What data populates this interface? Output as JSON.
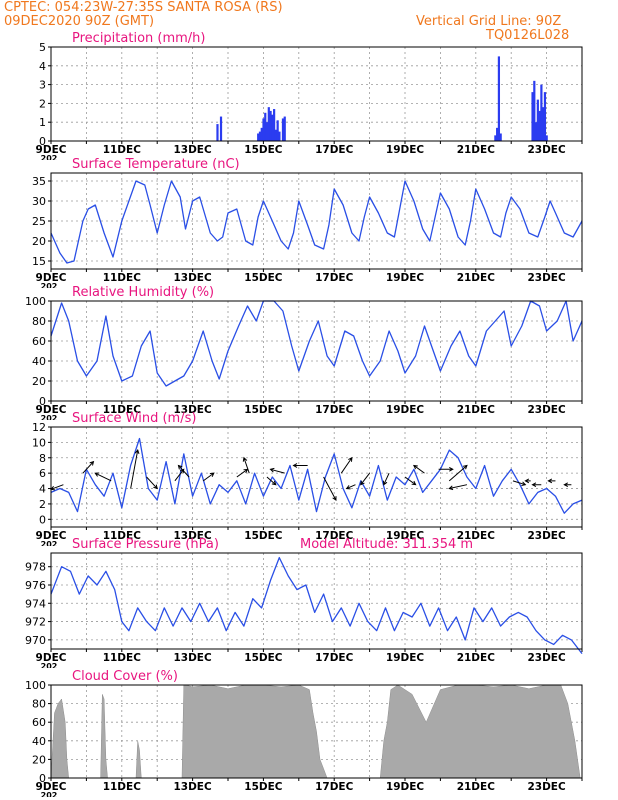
{
  "header": {
    "line1": "CPTEC:   054:23W-27:35S   SANTA ROSA (RS)",
    "line2": "09DEC2020 90Z (GMT)",
    "grid_note": "Vertical Grid Line: 90Z",
    "model_id": "TQ0126L028"
  },
  "colors": {
    "header": "#f0781e",
    "title": "#e8157f",
    "series": "#2a4fe6",
    "bars": "#2b3cf0",
    "cloud": "#a9a9a9",
    "wind_arrow": "#000000"
  },
  "date_ticks": [
    "9DEC",
    "11DEC",
    "13DEC",
    "15DEC",
    "17DEC",
    "19DEC",
    "21DEC",
    "23DEC"
  ],
  "year_stub": "202",
  "chart_data": [
    {
      "id": "precip",
      "type": "bar",
      "title": "Precipitation (mm/h)",
      "ylim": [
        0,
        5
      ],
      "yticks": [
        "0",
        "1",
        "2",
        "3",
        "4",
        "5"
      ],
      "grid": true,
      "x": [
        4.7,
        4.8,
        5.85,
        5.9,
        5.95,
        6.0,
        6.05,
        6.1,
        6.15,
        6.2,
        6.25,
        6.3,
        6.35,
        6.4,
        6.45,
        6.55,
        6.6,
        12.55,
        12.6,
        12.65,
        12.7,
        13.6,
        13.65,
        13.7,
        13.75,
        13.8,
        13.85,
        13.9,
        13.95,
        14.0
      ],
      "values": [
        0.9,
        1.3,
        0.4,
        0.5,
        0.7,
        1.2,
        1.5,
        1.0,
        1.8,
        1.6,
        1.4,
        1.7,
        0.6,
        1.1,
        0.5,
        1.2,
        1.3,
        0.3,
        0.7,
        4.5,
        0.4,
        2.6,
        3.2,
        1.0,
        2.2,
        1.6,
        3.0,
        1.8,
        2.6,
        0.3
      ]
    },
    {
      "id": "temperature",
      "type": "line",
      "title": "Surface Temperature (nC)",
      "ylim": [
        13,
        37
      ],
      "yticks": [
        "15",
        "20",
        "25",
        "30",
        "35"
      ],
      "grid": true,
      "x": [
        0,
        0.25,
        0.45,
        0.65,
        0.9,
        1.05,
        1.25,
        1.5,
        1.75,
        2.0,
        2.2,
        2.4,
        2.65,
        2.8,
        3.0,
        3.2,
        3.4,
        3.65,
        3.8,
        4.0,
        4.2,
        4.5,
        4.7,
        4.85,
        5.0,
        5.25,
        5.5,
        5.7,
        5.85,
        6.0,
        6.25,
        6.5,
        6.7,
        6.85,
        7.0,
        7.25,
        7.45,
        7.7,
        7.85,
        8.0,
        8.25,
        8.5,
        8.7,
        8.85,
        9.0,
        9.25,
        9.5,
        9.7,
        9.85,
        10.0,
        10.25,
        10.5,
        10.7,
        10.85,
        11.0,
        11.25,
        11.5,
        11.7,
        11.85,
        12.0,
        12.25,
        12.5,
        12.7,
        12.85,
        13.0,
        13.25,
        13.5,
        13.75,
        13.95,
        14.1,
        14.25,
        14.5,
        14.75,
        15.0
      ],
      "values": [
        22,
        17,
        14.5,
        15,
        25,
        28,
        29,
        22,
        16,
        25,
        30,
        35,
        34,
        29,
        22,
        29,
        35,
        31,
        23,
        30,
        31,
        22,
        20,
        21,
        27,
        28,
        20,
        19,
        26,
        30,
        25,
        20,
        18,
        22,
        30,
        24,
        19,
        18,
        24,
        33,
        29,
        22,
        20,
        26,
        31,
        27,
        22,
        21,
        28,
        35,
        30,
        23,
        20,
        26,
        32,
        28,
        21,
        19,
        25,
        33,
        28,
        22,
        21,
        27,
        31,
        28,
        22,
        21,
        26,
        30,
        27,
        22,
        21,
        25
      ]
    },
    {
      "id": "humidity",
      "type": "line",
      "title": "Relative Humidity (%)",
      "ylim": [
        0,
        100
      ],
      "yticks": [
        "0",
        "20",
        "40",
        "60",
        "80",
        "100"
      ],
      "grid": true,
      "x": [
        0,
        0.3,
        0.5,
        0.75,
        1.0,
        1.3,
        1.55,
        1.75,
        2.0,
        2.3,
        2.55,
        2.8,
        3.0,
        3.25,
        3.5,
        3.75,
        4.0,
        4.3,
        4.55,
        4.75,
        5.0,
        5.3,
        5.55,
        5.8,
        6.0,
        6.3,
        6.55,
        6.8,
        7.0,
        7.3,
        7.55,
        7.8,
        8.0,
        8.3,
        8.55,
        8.8,
        9.0,
        9.3,
        9.55,
        9.8,
        10.0,
        10.3,
        10.55,
        10.8,
        11.0,
        11.3,
        11.55,
        11.8,
        12.0,
        12.3,
        12.55,
        12.8,
        13.0,
        13.3,
        13.55,
        13.8,
        14.0,
        14.3,
        14.55,
        14.75,
        15.0
      ],
      "values": [
        65,
        98,
        80,
        40,
        25,
        40,
        85,
        45,
        20,
        25,
        55,
        70,
        28,
        15,
        20,
        25,
        40,
        70,
        40,
        22,
        50,
        75,
        95,
        80,
        100,
        100,
        90,
        55,
        30,
        60,
        80,
        45,
        35,
        70,
        65,
        40,
        25,
        40,
        70,
        50,
        28,
        45,
        75,
        50,
        30,
        55,
        70,
        45,
        35,
        70,
        80,
        90,
        55,
        75,
        100,
        95,
        70,
        80,
        100,
        60,
        80
      ]
    },
    {
      "id": "wind",
      "type": "line",
      "title": "Surface Wind (m/s)",
      "ylim": [
        -1,
        12
      ],
      "yticks": [
        "0",
        "2",
        "4",
        "6",
        "8",
        "10",
        "12"
      ],
      "grid": true,
      "x": [
        0,
        0.25,
        0.5,
        0.75,
        1.0,
        1.25,
        1.5,
        1.75,
        2.0,
        2.25,
        2.5,
        2.75,
        3.0,
        3.25,
        3.5,
        3.75,
        4.0,
        4.25,
        4.5,
        4.75,
        5.0,
        5.25,
        5.5,
        5.75,
        6.0,
        6.25,
        6.5,
        6.75,
        7.0,
        7.25,
        7.5,
        7.75,
        8.0,
        8.25,
        8.5,
        8.75,
        9.0,
        9.25,
        9.5,
        9.75,
        10.0,
        10.25,
        10.5,
        10.75,
        11.0,
        11.25,
        11.5,
        11.75,
        12.0,
        12.25,
        12.5,
        12.75,
        13.0,
        13.25,
        13.5,
        13.75,
        14.0,
        14.25,
        14.5,
        14.75,
        15.0
      ],
      "values": [
        3.5,
        4.0,
        3.5,
        1.0,
        6.5,
        4.5,
        3.0,
        6.0,
        1.5,
        7.0,
        10.5,
        4.0,
        2.5,
        7.5,
        2.0,
        8.5,
        3.0,
        6.0,
        2.0,
        4.5,
        3.5,
        5.0,
        2.0,
        6.0,
        3.0,
        5.5,
        4.0,
        7.0,
        2.5,
        6.5,
        1.0,
        5.5,
        8.5,
        4.0,
        1.5,
        5.0,
        3.0,
        7.0,
        2.5,
        5.5,
        4.5,
        6.5,
        3.5,
        5.0,
        6.5,
        9.0,
        8.0,
        5.5,
        4.0,
        7.0,
        3.0,
        5.0,
        6.5,
        4.5,
        2.0,
        3.5,
        4.0,
        3.0,
        0.8,
        2.0,
        2.5
      ]
    },
    {
      "id": "pressure",
      "type": "line",
      "title": "Surface Pressure (hPa)",
      "annotation": "Model Altitude: 311.354 m",
      "ylim": [
        969,
        979.5
      ],
      "yticks": [
        "970",
        "972",
        "974",
        "976",
        "978"
      ],
      "grid": true,
      "x": [
        0,
        0.3,
        0.55,
        0.8,
        1.05,
        1.3,
        1.55,
        1.8,
        2.0,
        2.2,
        2.45,
        2.7,
        2.95,
        3.2,
        3.45,
        3.7,
        3.95,
        4.2,
        4.45,
        4.7,
        4.95,
        5.2,
        5.45,
        5.7,
        5.95,
        6.2,
        6.45,
        6.7,
        6.95,
        7.2,
        7.45,
        7.7,
        7.95,
        8.2,
        8.45,
        8.7,
        8.95,
        9.2,
        9.45,
        9.7,
        9.95,
        10.2,
        10.45,
        10.7,
        10.95,
        11.2,
        11.45,
        11.7,
        11.95,
        12.2,
        12.45,
        12.7,
        12.95,
        13.2,
        13.45,
        13.7,
        13.95,
        14.2,
        14.45,
        14.7,
        15.0
      ],
      "values": [
        975,
        978,
        977.5,
        975,
        977,
        976,
        977.5,
        975.5,
        972,
        971,
        973.5,
        972,
        971,
        973.5,
        971.5,
        973.5,
        972,
        974,
        972,
        973.5,
        971,
        973,
        971.5,
        974.5,
        973.5,
        976.5,
        979,
        977,
        975.5,
        976,
        973,
        975,
        972,
        973.5,
        971.5,
        974,
        972,
        971,
        973.5,
        971,
        973,
        972.5,
        974,
        971.5,
        973.5,
        971,
        972.5,
        970,
        973.5,
        972,
        973.5,
        971.5,
        972.5,
        973,
        972.5,
        971,
        970,
        969.5,
        970.5,
        970,
        968.5
      ]
    },
    {
      "id": "cloud",
      "type": "area",
      "title": "Cloud Cover (%)",
      "ylim": [
        0,
        100
      ],
      "yticks": [
        "0",
        "20",
        "40",
        "60",
        "80",
        "100"
      ],
      "grid": true,
      "x": [
        0,
        0.1,
        0.15,
        0.2,
        0.3,
        0.4,
        0.45,
        0.5,
        1.4,
        1.45,
        1.5,
        1.55,
        1.6,
        1.65,
        2.4,
        2.45,
        2.5,
        2.55,
        3.7,
        3.75,
        3.8,
        4.0,
        4.5,
        5.0,
        5.5,
        6.0,
        6.5,
        7.0,
        7.3,
        7.4,
        7.5,
        7.6,
        7.7,
        7.8,
        9.3,
        9.4,
        9.5,
        9.6,
        9.8,
        10.2,
        10.6,
        11.0,
        11.5,
        12.0,
        12.5,
        13.0,
        13.5,
        14.0,
        14.4,
        14.6,
        14.8,
        14.95
      ],
      "values": [
        0,
        70,
        75,
        80,
        85,
        60,
        20,
        0,
        0,
        90,
        85,
        20,
        0,
        0,
        0,
        40,
        30,
        0,
        0,
        100,
        100,
        98,
        100,
        96,
        100,
        100,
        98,
        100,
        95,
        70,
        50,
        20,
        10,
        0,
        0,
        40,
        60,
        95,
        100,
        90,
        60,
        95,
        100,
        100,
        98,
        100,
        96,
        100,
        100,
        80,
        40,
        0
      ]
    }
  ],
  "wind_arrows": {
    "x": [
      0.35,
      0.9,
      1.7,
      2.25,
      2.7,
      3.5,
      3.9,
      4.3,
      5.25,
      5.6,
      6.1,
      6.6,
      7.25,
      7.7,
      8.2,
      8.6,
      9.0,
      9.55,
      10.0,
      10.55,
      10.95,
      11.25,
      11.75,
      13.05,
      13.55,
      13.85,
      14.25,
      14.7
    ],
    "y": [
      4.5,
      6.0,
      5.0,
      4.0,
      5.5,
      5.0,
      5.5,
      5.0,
      5.5,
      6.0,
      5.5,
      6.0,
      7.0,
      5.5,
      6.0,
      4.5,
      6.0,
      6.0,
      5.5,
      6.0,
      6.5,
      5.0,
      4.5,
      5.0,
      5.0,
      4.5,
      5.0,
      4.5
    ],
    "dx": [
      -0.35,
      0.3,
      -0.45,
      0.2,
      0.3,
      0.25,
      -0.3,
      0.3,
      0.3,
      -0.15,
      0.25,
      -0.4,
      -0.4,
      0.35,
      0.3,
      -0.25,
      -0.25,
      -0.15,
      0.3,
      -0.3,
      0.4,
      0.5,
      -0.5,
      0.35,
      -0.15,
      -0.25,
      -0.2,
      -0.2
    ],
    "dy": [
      -0.6,
      1.5,
      1.0,
      5.0,
      -1.5,
      1.5,
      1.5,
      1.0,
      1.0,
      2.0,
      -1.0,
      0.5,
      0.0,
      -3.0,
      2.0,
      -0.5,
      -1.5,
      -1.5,
      -1.0,
      1.0,
      0.0,
      2.0,
      -0.5,
      -0.5,
      0.0,
      0.0,
      0.0,
      0.0
    ]
  }
}
